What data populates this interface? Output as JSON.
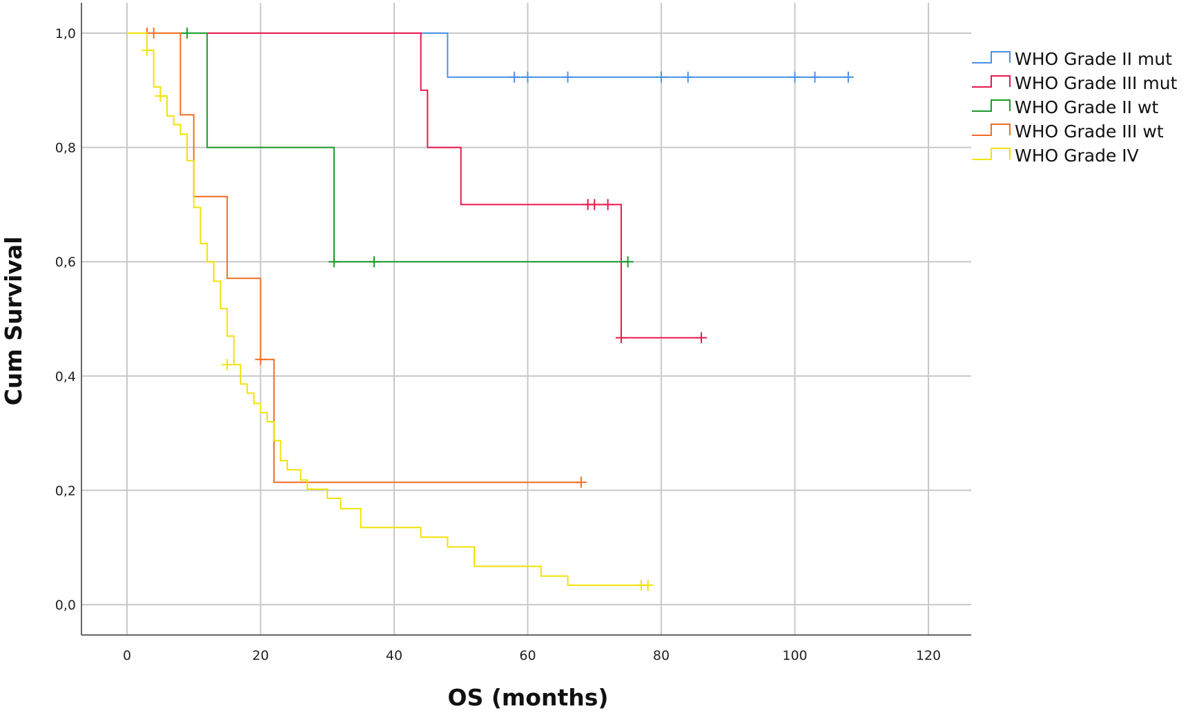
{
  "chart_data": {
    "type": "line",
    "subtype": "kaplan-meier-step",
    "title": "",
    "xlabel": "OS (months)",
    "ylabel": "Cum Survival",
    "xlim": [
      -6.5,
      126
    ],
    "ylim": [
      -0.054,
      1.054
    ],
    "xticks": [
      0,
      20,
      40,
      60,
      80,
      100,
      120
    ],
    "xtick_labels": [
      "0",
      "20",
      "40",
      "60",
      "80",
      "100",
      "120"
    ],
    "yticks": [
      0.0,
      0.2,
      0.4,
      0.6,
      0.8,
      1.0
    ],
    "ytick_labels": [
      "0,0",
      "0,2",
      "0,4",
      "0,6",
      "0,8",
      "1,0"
    ],
    "grid": true,
    "legend_position": "top-right",
    "series": [
      {
        "name": "WHO Grade II mut",
        "color": "#4a90e2",
        "steps": [
          [
            0,
            1.0
          ],
          [
            48,
            0.923
          ],
          [
            108,
            0.923
          ]
        ],
        "censored": [
          [
            58,
            0.923
          ],
          [
            60,
            0.923
          ],
          [
            66,
            0.923
          ],
          [
            80,
            0.923
          ],
          [
            84,
            0.923
          ],
          [
            100,
            0.923
          ],
          [
            103,
            0.923
          ],
          [
            108,
            0.923
          ]
        ]
      },
      {
        "name": "WHO Grade III mut",
        "color": "#e8174d",
        "steps": [
          [
            0,
            1.0
          ],
          [
            44,
            0.9
          ],
          [
            45,
            0.8
          ],
          [
            50,
            0.7
          ],
          [
            74,
            0.467
          ],
          [
            86,
            0.467
          ]
        ],
        "censored": [
          [
            69,
            0.7
          ],
          [
            70,
            0.7
          ],
          [
            72,
            0.7
          ],
          [
            74,
            0.467
          ],
          [
            86,
            0.467
          ]
        ]
      },
      {
        "name": "WHO Grade II wt",
        "color": "#1a9a2a",
        "steps": [
          [
            0,
            1.0
          ],
          [
            12,
            0.8
          ],
          [
            31,
            0.6
          ],
          [
            75,
            0.6
          ]
        ],
        "censored": [
          [
            9,
            1.0
          ],
          [
            31,
            0.6
          ],
          [
            37,
            0.6
          ],
          [
            75,
            0.6
          ]
        ]
      },
      {
        "name": "WHO Grade III wt",
        "color": "#f36b21",
        "steps": [
          [
            0,
            1.0
          ],
          [
            8,
            0.857
          ],
          [
            10,
            0.714
          ],
          [
            15,
            0.571
          ],
          [
            20,
            0.429
          ],
          [
            22,
            0.214
          ],
          [
            68,
            0.214
          ]
        ],
        "censored": [
          [
            3,
            1.0
          ],
          [
            4,
            1.0
          ],
          [
            20,
            0.429
          ],
          [
            68,
            0.214
          ]
        ]
      },
      {
        "name": "WHO Grade IV",
        "color": "#f2e200",
        "steps": [
          [
            0,
            1.0
          ],
          [
            3,
            0.97
          ],
          [
            4,
            0.906
          ],
          [
            5,
            0.89
          ],
          [
            6,
            0.855
          ],
          [
            7,
            0.84
          ],
          [
            8,
            0.823
          ],
          [
            9,
            0.777
          ],
          [
            10,
            0.695
          ],
          [
            11,
            0.632
          ],
          [
            12,
            0.6
          ],
          [
            13,
            0.566
          ],
          [
            14,
            0.518
          ],
          [
            15,
            0.47
          ],
          [
            16,
            0.42
          ],
          [
            17,
            0.386
          ],
          [
            18,
            0.37
          ],
          [
            19,
            0.352
          ],
          [
            20,
            0.336
          ],
          [
            21,
            0.32
          ],
          [
            22,
            0.287
          ],
          [
            23,
            0.252
          ],
          [
            24,
            0.236
          ],
          [
            26,
            0.218
          ],
          [
            27,
            0.202
          ],
          [
            30,
            0.186
          ],
          [
            32,
            0.168
          ],
          [
            35,
            0.135
          ],
          [
            44,
            0.118
          ],
          [
            48,
            0.101
          ],
          [
            52,
            0.067
          ],
          [
            62,
            0.05
          ],
          [
            66,
            0.034
          ],
          [
            78,
            0.034
          ]
        ],
        "censored": [
          [
            3,
            0.97
          ],
          [
            5,
            0.89
          ],
          [
            15,
            0.42
          ],
          [
            77,
            0.034
          ],
          [
            78,
            0.034
          ]
        ]
      }
    ]
  }
}
